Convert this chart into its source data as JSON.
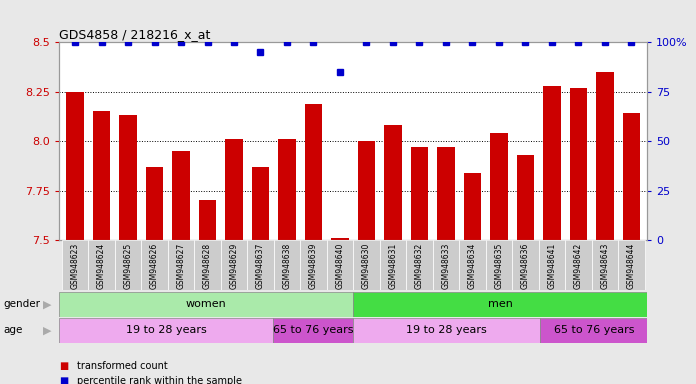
{
  "title": "GDS4858 / 218216_x_at",
  "samples": [
    "GSM948623",
    "GSM948624",
    "GSM948625",
    "GSM948626",
    "GSM948627",
    "GSM948628",
    "GSM948629",
    "GSM948637",
    "GSM948638",
    "GSM948639",
    "GSM948640",
    "GSM948630",
    "GSM948631",
    "GSM948632",
    "GSM948633",
    "GSM948634",
    "GSM948635",
    "GSM948636",
    "GSM948641",
    "GSM948642",
    "GSM948643",
    "GSM948644"
  ],
  "red_values": [
    8.25,
    8.15,
    8.13,
    7.87,
    7.95,
    7.7,
    8.01,
    7.87,
    8.01,
    8.19,
    7.51,
    8.0,
    8.08,
    7.97,
    7.97,
    7.84,
    8.04,
    7.93,
    8.28,
    8.27,
    8.35,
    8.14
  ],
  "blue_values": [
    100,
    100,
    100,
    100,
    100,
    100,
    100,
    95,
    100,
    100,
    85,
    100,
    100,
    100,
    100,
    100,
    100,
    100,
    100,
    100,
    100,
    100
  ],
  "ylim_left": [
    7.5,
    8.5
  ],
  "ylim_right": [
    0,
    100
  ],
  "yticks_left": [
    7.5,
    7.75,
    8.0,
    8.25,
    8.5
  ],
  "yticks_right": [
    0,
    25,
    50,
    75,
    100
  ],
  "ytick_labels_right": [
    "0",
    "25",
    "50",
    "75",
    "100%"
  ],
  "bar_color": "#cc0000",
  "dot_color": "#0000cc",
  "background_color": "#e8e8e8",
  "plot_bg_color": "#ffffff",
  "xtick_bg_color": "#cccccc",
  "gender_groups": [
    {
      "label": "women",
      "start": 0,
      "end": 10,
      "color": "#aaeaaa"
    },
    {
      "label": "men",
      "start": 11,
      "end": 21,
      "color": "#44dd44"
    }
  ],
  "age_groups": [
    {
      "label": "19 to 28 years",
      "start": 0,
      "end": 7,
      "color": "#eeaaee"
    },
    {
      "label": "65 to 76 years",
      "start": 8,
      "end": 10,
      "color": "#cc55cc"
    },
    {
      "label": "19 to 28 years",
      "start": 11,
      "end": 17,
      "color": "#eeaaee"
    },
    {
      "label": "65 to 76 years",
      "start": 18,
      "end": 21,
      "color": "#cc55cc"
    }
  ],
  "legend_items": [
    {
      "color": "#cc0000",
      "label": "transformed count"
    },
    {
      "color": "#0000cc",
      "label": "percentile rank within the sample"
    }
  ],
  "left_tick_color": "#cc0000",
  "right_tick_color": "#0000cc",
  "n_samples": 22
}
